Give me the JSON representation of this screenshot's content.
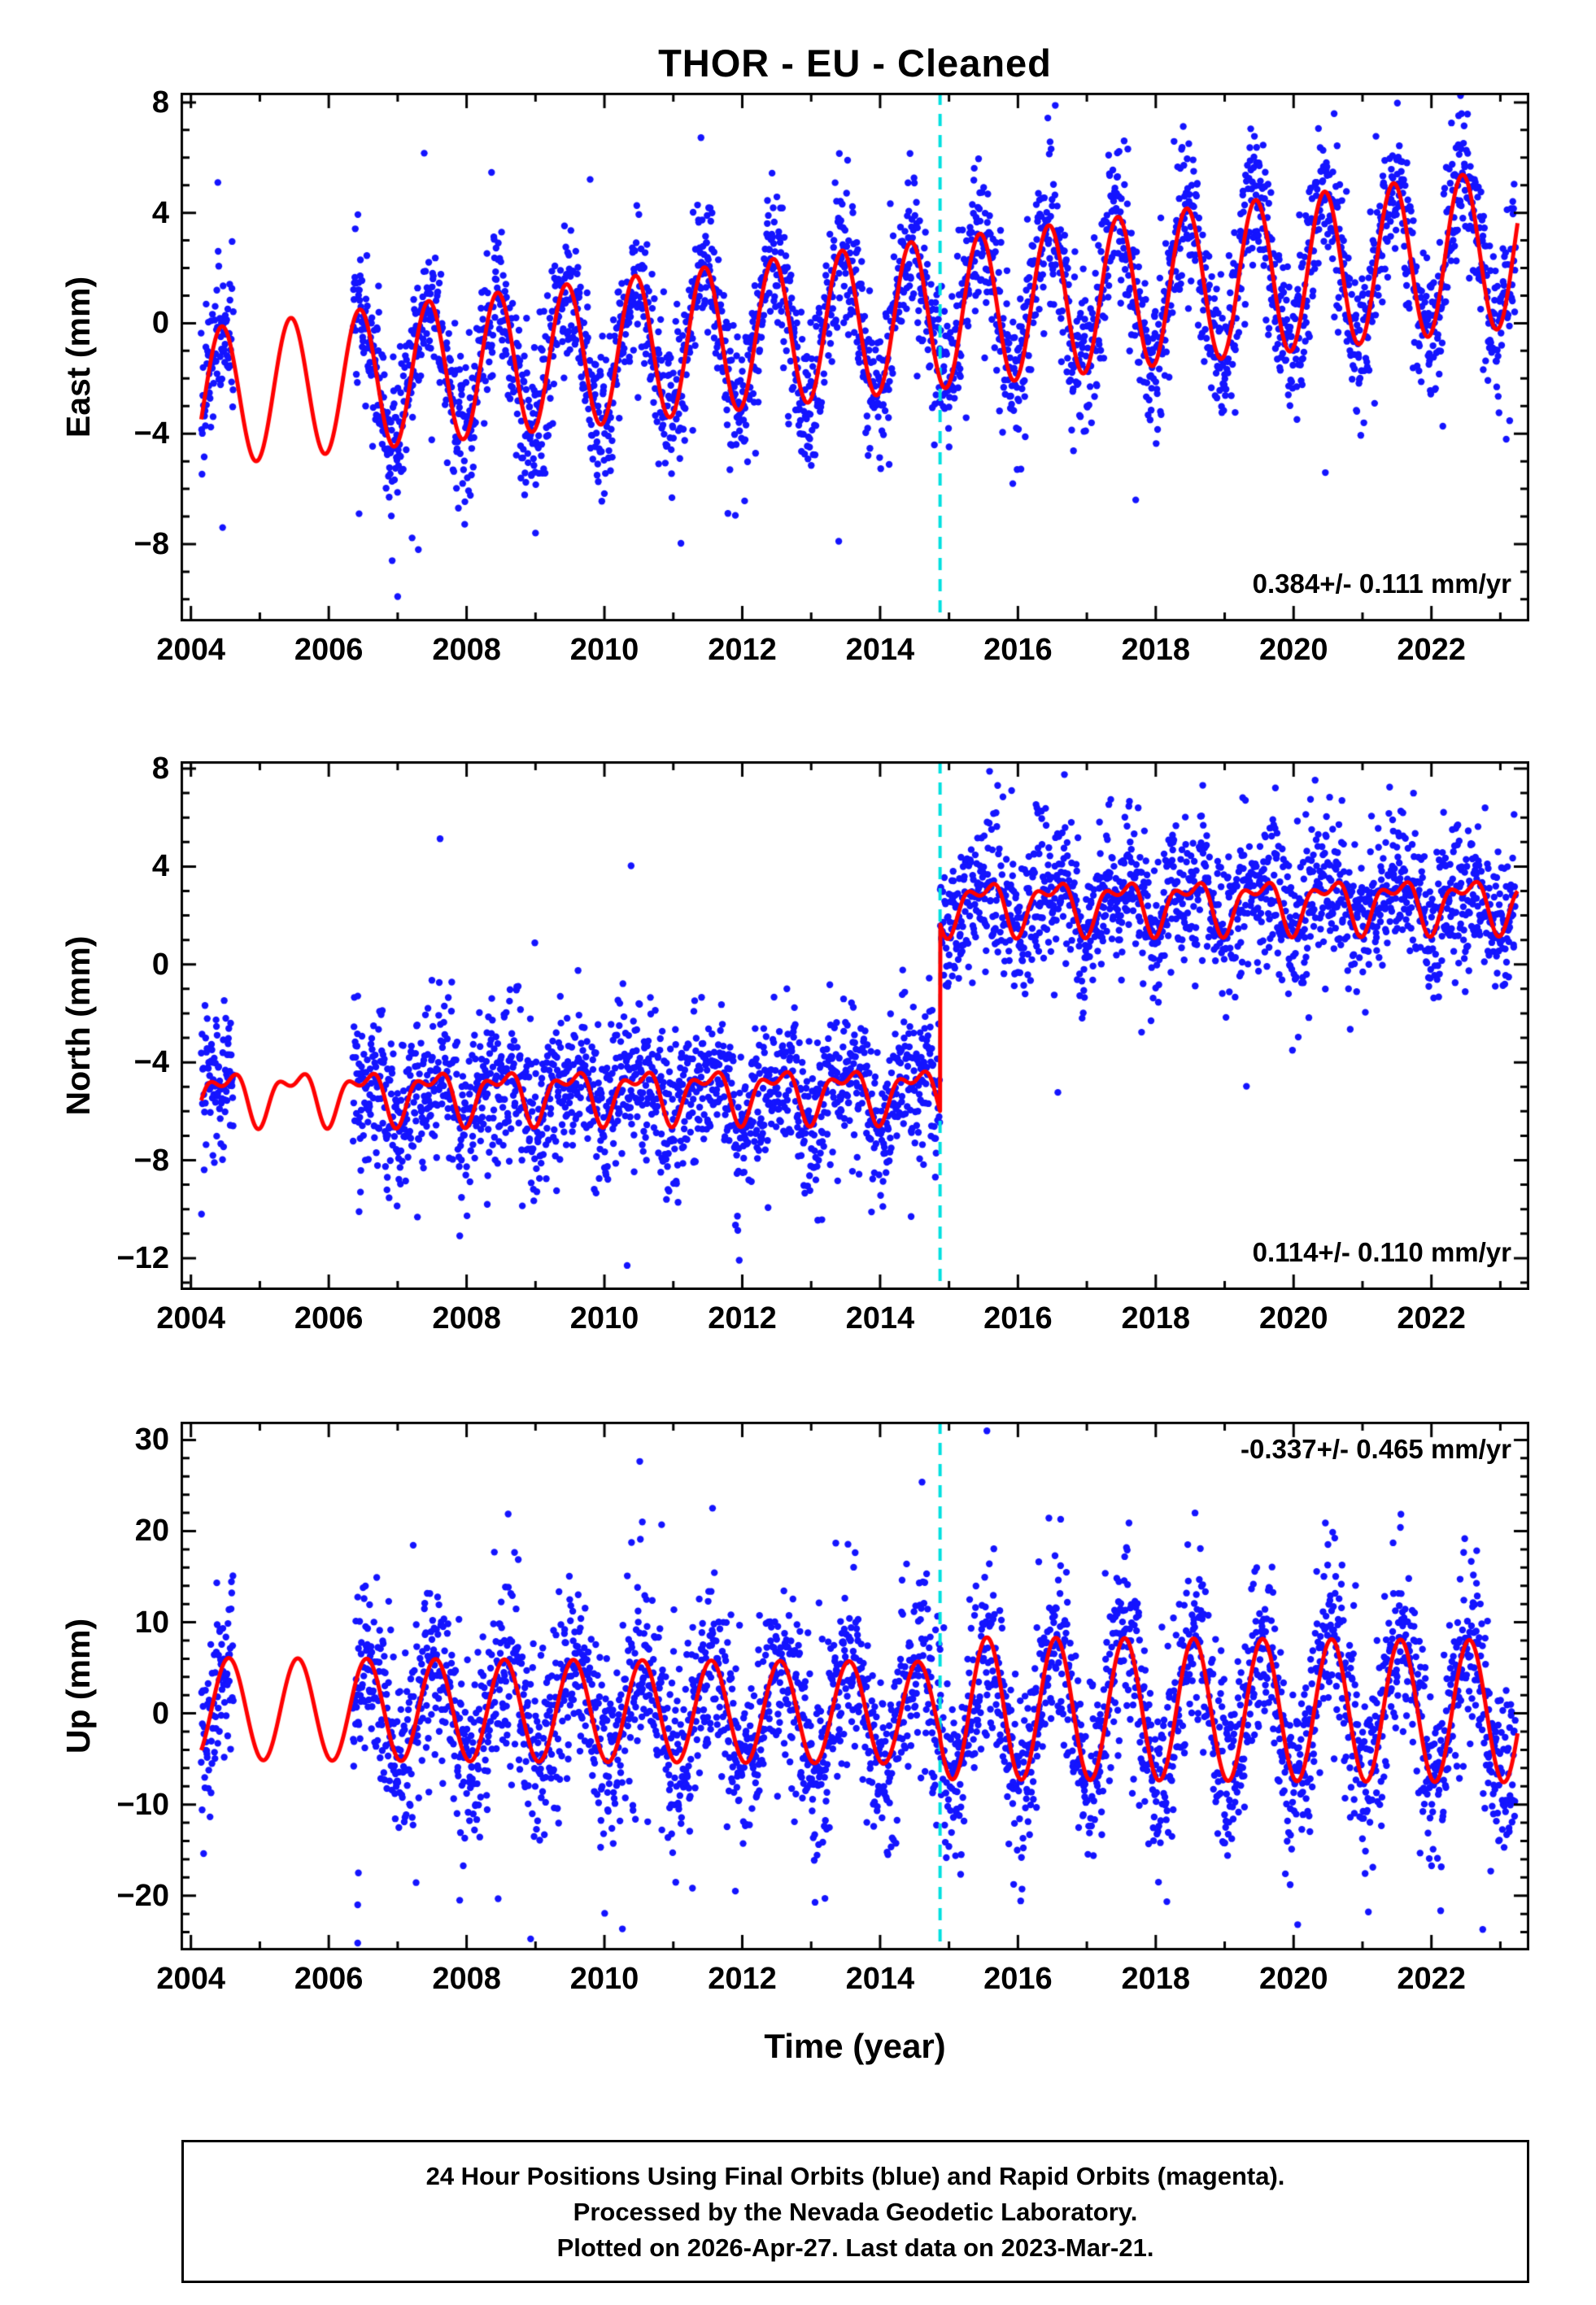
{
  "title": "THOR  - EU - Cleaned",
  "xlabel": "Time (year)",
  "footer": {
    "line1": "24 Hour Positions Using Final Orbits (blue) and Rapid Orbits (magenta).",
    "line2": "Processed by the Nevada Geodetic Laboratory.",
    "line3": "Plotted on 2026-Apr-27. Last data on 2023-Mar-21."
  },
  "colors": {
    "points": "#1414ff",
    "model_curve": "#ff0000",
    "event_line": "#00e0e0",
    "frame": "#000000",
    "background": "#ffffff"
  },
  "chart_data": [
    {
      "type": "scatter",
      "name": "east",
      "ylabel": "East (mm)",
      "annotation": "0.384+/- 0.111 mm/yr",
      "annotation_pos": "bottom-right",
      "ylim": [
        -10.8,
        8.35
      ],
      "yticks": [
        -8,
        -4,
        0,
        4,
        8
      ],
      "y_minor_step": 1,
      "xlim": [
        2003.85,
        2023.42
      ],
      "xticks": [
        2004,
        2006,
        2008,
        2010,
        2012,
        2014,
        2016,
        2018,
        2020,
        2022
      ],
      "x_minor_step": 1,
      "event_year": 2014.87,
      "segments": [
        [
          2004.15,
          2004.62
        ],
        [
          2006.35,
          2023.22
        ]
      ],
      "curve_range": [
        2004.15,
        2023.25
      ],
      "seed": 7,
      "model": {
        "t0": 2004,
        "base": -2.75,
        "slope": 0.285,
        "step_t": null,
        "step_offset": 0,
        "annual_amp": 2.5,
        "annual_amp_growth": 0.02,
        "annual_amp_step": 0,
        "annual_phase": 0.45,
        "semi_amp": 0,
        "semi_phase": 0,
        "noise": 1.35,
        "outlier_p": 0.02,
        "outlier_scale": 3.2
      },
      "extra_points": [
        [
          2007.0,
          -9.9
        ],
        [
          2006.92,
          -8.6
        ],
        [
          2007.3,
          -8.2
        ],
        [
          2004.46,
          -7.4
        ],
        [
          2006.44,
          -6.9
        ],
        [
          2009.0,
          -7.6
        ],
        [
          2013.4,
          -7.9
        ]
      ]
    },
    {
      "type": "scatter",
      "name": "north",
      "ylabel": "North (mm)",
      "annotation": "0.114+/- 0.110 mm/yr",
      "annotation_pos": "bottom-right",
      "ylim": [
        -13.3,
        8.3
      ],
      "yticks": [
        -12,
        -8,
        -4,
        0,
        4,
        8
      ],
      "y_minor_step": 1,
      "xlim": [
        2003.85,
        2023.42
      ],
      "xticks": [
        2004,
        2006,
        2008,
        2010,
        2012,
        2014,
        2016,
        2018,
        2020,
        2022
      ],
      "x_minor_step": 1,
      "event_year": 2014.87,
      "segments": [
        [
          2004.15,
          2004.62
        ],
        [
          2006.35,
          2023.22
        ]
      ],
      "curve_range": [
        2004.15,
        2023.25
      ],
      "seed": 13,
      "model": {
        "t0": 2004,
        "base": -5.35,
        "slope": 0.012,
        "step_t": 2014.87,
        "step_offset": 7.65,
        "annual_amp": 0.9,
        "annual_amp_growth": 0,
        "annual_amp_step": 0,
        "annual_phase": 0.5,
        "semi_amp": 0.5,
        "semi_phase": 0.22,
        "noise": 1.5,
        "outlier_p": 0.02,
        "outlier_scale": 2.8
      },
      "extra_points": [
        [
          2010.33,
          -12.3
        ],
        [
          2006.44,
          -10.1
        ],
        [
          2014.45,
          -10.3
        ],
        [
          2006.46,
          -9.3
        ],
        [
          2010.9,
          -9.6
        ],
        [
          2008.3,
          -9.8
        ]
      ]
    },
    {
      "type": "scatter",
      "name": "up",
      "ylabel": "Up (mm)",
      "annotation": "-0.337+/- 0.465 mm/yr",
      "annotation_pos": "top-right",
      "ylim": [
        -26,
        32
      ],
      "yticks": [
        -20,
        -10,
        0,
        10,
        20,
        30
      ],
      "y_minor_step": 2,
      "xlim": [
        2003.85,
        2023.42
      ],
      "xticks": [
        2004,
        2006,
        2008,
        2010,
        2012,
        2014,
        2016,
        2018,
        2020,
        2022
      ],
      "x_minor_step": 1,
      "event_year": 2014.87,
      "segments": [
        [
          2004.15,
          2004.62
        ],
        [
          2006.35,
          2023.22
        ]
      ],
      "curve_range": [
        2004.15,
        2023.25
      ],
      "seed": 21,
      "model": {
        "t0": 2004,
        "base": 0.5,
        "slope": -0.04,
        "step_t": 2014.87,
        "step_offset": 0.5,
        "annual_amp": 5.6,
        "annual_amp_growth": 0,
        "annual_amp_step": 2.2,
        "annual_phase": 0.55,
        "semi_amp": 0,
        "semi_phase": 0,
        "noise": 5.0,
        "outlier_p": 0.03,
        "outlier_scale": 2.6
      },
      "extra_points": [
        [
          2006.42,
          -25.2
        ],
        [
          2006.42,
          -21.0
        ],
        [
          2006.43,
          -17.5
        ],
        [
          2015.55,
          31.0
        ],
        [
          2010.83,
          20.7
        ],
        [
          2007.9,
          -20.5
        ],
        [
          2011.9,
          -19.5
        ],
        [
          2019.95,
          -18.8
        ],
        [
          2016.62,
          21.3
        ],
        [
          2021.55,
          20.4
        ],
        [
          2013.2,
          -20.3
        ],
        [
          2010.55,
          21.0
        ]
      ]
    }
  ]
}
